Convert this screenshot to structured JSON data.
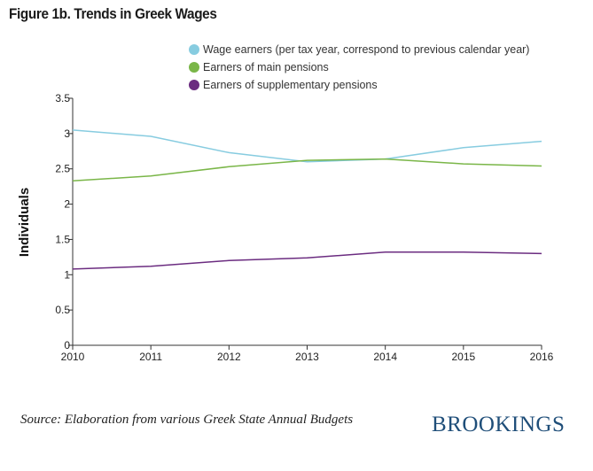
{
  "chart_data": {
    "type": "line",
    "title": "Figure 1b. Trends in Greek Wages",
    "xlabel": "",
    "ylabel": "Individuals",
    "x": [
      "2010",
      "2011",
      "2012",
      "2013",
      "2014",
      "2015",
      "2016"
    ],
    "ylim": [
      0,
      3.5
    ],
    "yticks": [
      "0",
      "0.5",
      "1",
      "1.5",
      "2",
      "2.5",
      "3",
      "3.5"
    ],
    "grid": false,
    "legend_position": "top",
    "series": [
      {
        "name": "Wage earners (per tax year, correspond to previous calendar year)",
        "color": "#87cce0",
        "values": [
          3.05,
          2.96,
          2.73,
          2.6,
          2.64,
          2.8,
          2.89
        ]
      },
      {
        "name": "Earners of main pensions",
        "color": "#7ab648",
        "values": [
          2.33,
          2.4,
          2.53,
          2.62,
          2.64,
          2.57,
          2.54
        ]
      },
      {
        "name": "Earners of supplementary pensions",
        "color": "#6b2c80",
        "values": [
          1.08,
          1.12,
          1.2,
          1.24,
          1.32,
          1.32,
          1.3
        ]
      }
    ]
  },
  "source": "Source: Elaboration from various Greek State Annual Budgets",
  "logo": "BROOKINGS"
}
